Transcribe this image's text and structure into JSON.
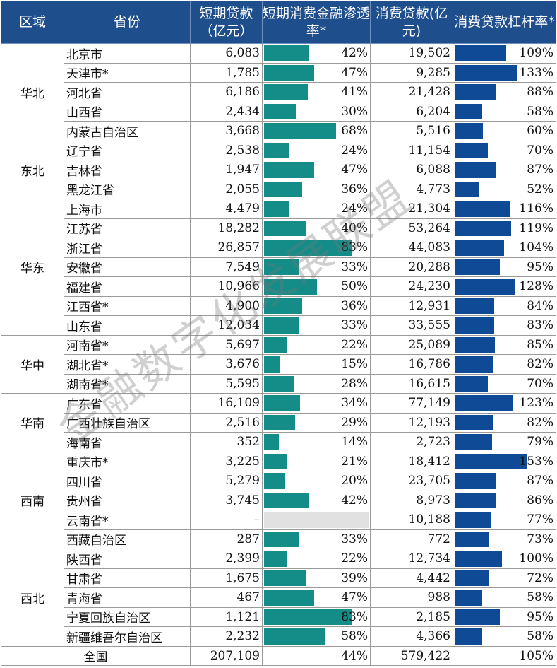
{
  "headers": [
    "区域",
    "省份",
    "短期贷款（亿元）",
    "短期消费金融渗透率*",
    "消费贷款(亿元)",
    "消费贷款杠杆率*"
  ],
  "watermark": "金融数字化发展联盟",
  "colors": {
    "header_bg": "#1f4e8c",
    "penetration_bar": "#148c87",
    "leverage_bar": "#0e4a96",
    "missing": "#e1e1e1"
  },
  "regions": [
    {
      "name": "华北",
      "rows": [
        {
          "province": "北京市",
          "short_loan": "6,083",
          "penetration": "42%",
          "pen_value": 42,
          "consumer_loan": "19,502",
          "leverage": "109%",
          "lev_value": 109
        },
        {
          "province": "天津市*",
          "short_loan": "1,785",
          "penetration": "47%",
          "pen_value": 47,
          "consumer_loan": "9,285",
          "leverage": "133%",
          "lev_value": 133
        },
        {
          "province": "河北省",
          "short_loan": "6,186",
          "penetration": "41%",
          "pen_value": 41,
          "consumer_loan": "21,428",
          "leverage": "88%",
          "lev_value": 88
        },
        {
          "province": "山西省",
          "short_loan": "2,434",
          "penetration": "30%",
          "pen_value": 30,
          "consumer_loan": "6,204",
          "leverage": "58%",
          "lev_value": 58
        },
        {
          "province": "内蒙古自治区",
          "short_loan": "3,668",
          "penetration": "68%",
          "pen_value": 68,
          "consumer_loan": "5,516",
          "leverage": "60%",
          "lev_value": 60
        }
      ]
    },
    {
      "name": "东北",
      "rows": [
        {
          "province": "辽宁省",
          "short_loan": "2,538",
          "penetration": "24%",
          "pen_value": 24,
          "consumer_loan": "11,154",
          "leverage": "70%",
          "lev_value": 70
        },
        {
          "province": "吉林省",
          "short_loan": "1,947",
          "penetration": "47%",
          "pen_value": 47,
          "consumer_loan": "6,088",
          "leverage": "87%",
          "lev_value": 87
        },
        {
          "province": "黑龙江省",
          "short_loan": "2,055",
          "penetration": "36%",
          "pen_value": 36,
          "consumer_loan": "4,773",
          "leverage": "52%",
          "lev_value": 52
        }
      ]
    },
    {
      "name": "华东",
      "rows": [
        {
          "province": "上海市",
          "short_loan": "4,479",
          "penetration": "24%",
          "pen_value": 24,
          "consumer_loan": "21,304",
          "leverage": "116%",
          "lev_value": 116
        },
        {
          "province": "江苏省",
          "short_loan": "18,282",
          "penetration": "40%",
          "pen_value": 40,
          "consumer_loan": "53,264",
          "leverage": "119%",
          "lev_value": 119
        },
        {
          "province": "浙江省",
          "short_loan": "26,857",
          "penetration": "83%",
          "pen_value": 83,
          "consumer_loan": "44,083",
          "leverage": "104%",
          "lev_value": 104
        },
        {
          "province": "安徽省",
          "short_loan": "7,549",
          "penetration": "33%",
          "pen_value": 33,
          "consumer_loan": "20,288",
          "leverage": "95%",
          "lev_value": 95
        },
        {
          "province": "福建省",
          "short_loan": "10,966",
          "penetration": "50%",
          "pen_value": 50,
          "consumer_loan": "24,230",
          "leverage": "128%",
          "lev_value": 128
        },
        {
          "province": "江西省*",
          "short_loan": "4,900",
          "penetration": "36%",
          "pen_value": 36,
          "consumer_loan": "12,931",
          "leverage": "84%",
          "lev_value": 84
        },
        {
          "province": "山东省",
          "short_loan": "12,034",
          "penetration": "33%",
          "pen_value": 33,
          "consumer_loan": "33,555",
          "leverage": "83%",
          "lev_value": 83
        }
      ]
    },
    {
      "name": "华中",
      "rows": [
        {
          "province": "河南省*",
          "short_loan": "5,697",
          "penetration": "22%",
          "pen_value": 22,
          "consumer_loan": "25,089",
          "leverage": "85%",
          "lev_value": 85
        },
        {
          "province": "湖北省*",
          "short_loan": "3,676",
          "penetration": "15%",
          "pen_value": 15,
          "consumer_loan": "16,786",
          "leverage": "82%",
          "lev_value": 82
        },
        {
          "province": "湖南省*",
          "short_loan": "5,595",
          "penetration": "28%",
          "pen_value": 28,
          "consumer_loan": "16,615",
          "leverage": "70%",
          "lev_value": 70
        }
      ]
    },
    {
      "name": "华南",
      "rows": [
        {
          "province": "广东省",
          "short_loan": "16,109",
          "penetration": "34%",
          "pen_value": 34,
          "consumer_loan": "77,149",
          "leverage": "123%",
          "lev_value": 123
        },
        {
          "province": "广西壮族自治区",
          "short_loan": "2,516",
          "penetration": "29%",
          "pen_value": 29,
          "consumer_loan": "12,193",
          "leverage": "82%",
          "lev_value": 82
        },
        {
          "province": "海南省",
          "short_loan": "352",
          "penetration": "14%",
          "pen_value": 14,
          "consumer_loan": "2,723",
          "leverage": "79%",
          "lev_value": 79
        }
      ]
    },
    {
      "name": "西南",
      "rows": [
        {
          "province": "重庆市*",
          "short_loan": "3,225",
          "penetration": "21%",
          "pen_value": 21,
          "consumer_loan": "18,412",
          "leverage": "153%",
          "lev_value": 153
        },
        {
          "province": "四川省",
          "short_loan": "5,279",
          "penetration": "20%",
          "pen_value": 20,
          "consumer_loan": "23,705",
          "leverage": "87%",
          "lev_value": 87
        },
        {
          "province": "贵州省",
          "short_loan": "3,745",
          "penetration": "42%",
          "pen_value": 42,
          "consumer_loan": "8,973",
          "leverage": "86%",
          "lev_value": 86
        },
        {
          "province": "云南省*",
          "short_loan": "–",
          "penetration": "",
          "pen_value": null,
          "consumer_loan": "10,188",
          "leverage": "77%",
          "lev_value": 77
        },
        {
          "province": "西藏自治区",
          "short_loan": "287",
          "penetration": "33%",
          "pen_value": 33,
          "consumer_loan": "772",
          "leverage": "73%",
          "lev_value": 73
        }
      ]
    },
    {
      "name": "西北",
      "rows": [
        {
          "province": "陕西省",
          "short_loan": "2,399",
          "penetration": "22%",
          "pen_value": 22,
          "consumer_loan": "12,734",
          "leverage": "100%",
          "lev_value": 100
        },
        {
          "province": "甘肃省",
          "short_loan": "1,675",
          "penetration": "39%",
          "pen_value": 39,
          "consumer_loan": "4,442",
          "leverage": "72%",
          "lev_value": 72
        },
        {
          "province": "青海省",
          "short_loan": "467",
          "penetration": "47%",
          "pen_value": 47,
          "consumer_loan": "988",
          "leverage": "58%",
          "lev_value": 58
        },
        {
          "province": "宁夏回族自治区",
          "short_loan": "1,121",
          "penetration": "83%",
          "pen_value": 83,
          "consumer_loan": "2,185",
          "leverage": "95%",
          "lev_value": 95
        },
        {
          "province": "新疆维吾尔自治区",
          "short_loan": "2,232",
          "penetration": "58%",
          "pen_value": 58,
          "consumer_loan": "4,366",
          "leverage": "58%",
          "lev_value": 58
        }
      ]
    }
  ],
  "total": {
    "label": "全国",
    "short_loan": "207,109",
    "penetration": "44%",
    "consumer_loan": "579,422",
    "leverage": "105%"
  }
}
